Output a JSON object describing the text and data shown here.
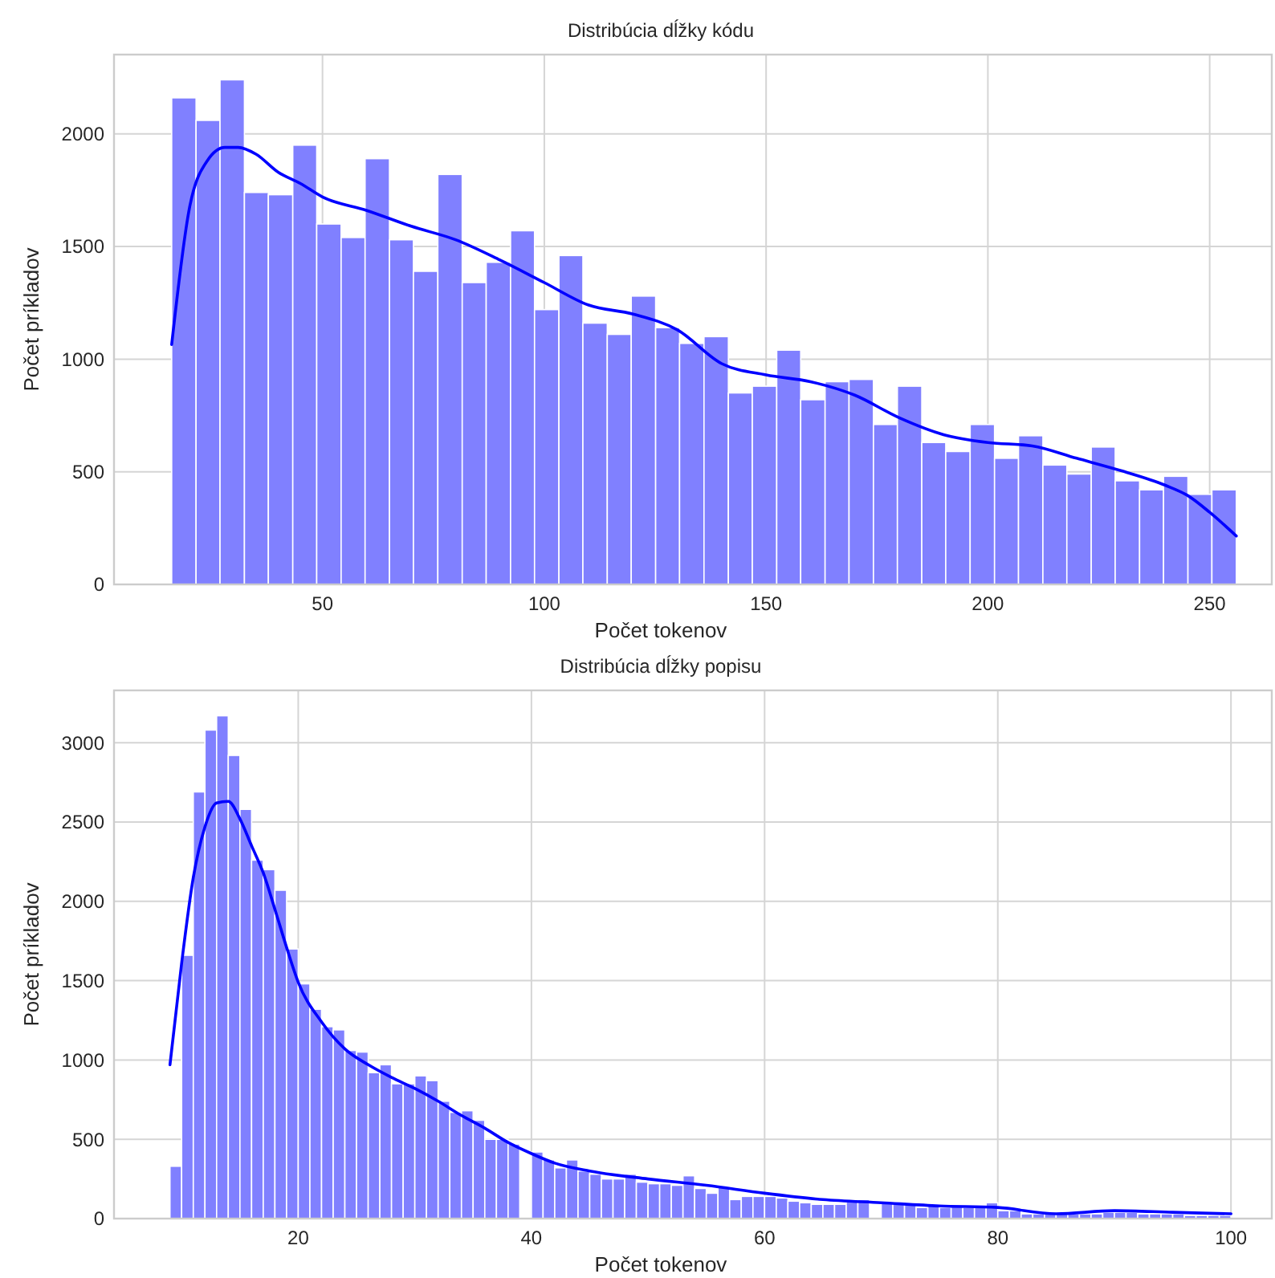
{
  "chart_data": [
    {
      "type": "histogram",
      "title": "Distribúcia dĺžky kódu",
      "xlabel": "Počet tokenov",
      "ylabel": "Počet príkladov",
      "bins": [
        16,
        21.5,
        26.9,
        32.4,
        37.8,
        43.3,
        48.7,
        54.2,
        59.6,
        65.1,
        70.5,
        76,
        81.5,
        86.9,
        92.4,
        97.8,
        103.3,
        108.7,
        114.2,
        119.6,
        125.1,
        130.5,
        136,
        141.5,
        146.9,
        152.4,
        157.8,
        163.3,
        168.7,
        174.2,
        179.6,
        185.1,
        190.5,
        196,
        201.5,
        206.9,
        212.4,
        217.8,
        223.3,
        228.7,
        234.2,
        239.6,
        245.1,
        250.5,
        256
      ],
      "values": [
        2160,
        2060,
        2240,
        1740,
        1730,
        1950,
        1600,
        1540,
        1890,
        1530,
        1390,
        1820,
        1340,
        1430,
        1570,
        1220,
        1460,
        1160,
        1110,
        1280,
        1140,
        1070,
        1100,
        850,
        880,
        1040,
        820,
        900,
        910,
        710,
        880,
        630,
        590,
        710,
        560,
        660,
        530,
        490,
        610,
        460,
        420,
        480,
        400,
        420
      ],
      "color": "#8080ff",
      "series": [
        {
          "type": "line",
          "color": "#0000ff",
          "x": [
            16,
            20,
            24,
            28,
            31,
            35,
            40,
            45,
            50,
            60,
            70,
            80,
            90,
            100,
            110,
            120,
            130,
            140,
            150,
            160,
            170,
            180,
            190,
            200,
            210,
            220,
            230,
            240,
            245,
            250,
            256
          ],
          "values": [
            1065,
            1670,
            1880,
            1940,
            1940,
            1910,
            1830,
            1780,
            1720,
            1660,
            1590,
            1530,
            1440,
            1340,
            1240,
            1200,
            1130,
            980,
            930,
            900,
            840,
            740,
            665,
            630,
            615,
            560,
            505,
            440,
            395,
            320,
            215
          ]
        }
      ],
      "xlim": [
        3,
        264
      ],
      "ylim": [
        0,
        2352
      ],
      "xticks": [
        50,
        100,
        150,
        200,
        250
      ],
      "yticks": [
        0,
        500,
        1000,
        1500,
        2000
      ],
      "grid": true
    },
    {
      "type": "histogram",
      "title": "Distribúcia dĺžky popisu",
      "xlabel": "Počet tokenov",
      "ylabel": "Počet príkladov",
      "bins": [
        9,
        10,
        11,
        12,
        13,
        14,
        15,
        16,
        17,
        18,
        19,
        20,
        21,
        22,
        23,
        24,
        25,
        26,
        27,
        28,
        29,
        30,
        31,
        32,
        33,
        34,
        35,
        36,
        37,
        38,
        39,
        40,
        41,
        42,
        43,
        44,
        45,
        46,
        47,
        48,
        49,
        50,
        51,
        52,
        53,
        54,
        55,
        56,
        57,
        58,
        59,
        60,
        61,
        62,
        63,
        64,
        65,
        66,
        67,
        68,
        69,
        70,
        71,
        72,
        73,
        74,
        75,
        76,
        77,
        78,
        79,
        80,
        81,
        82,
        83,
        84,
        85,
        86,
        87,
        88,
        89,
        90,
        91,
        92,
        93,
        94,
        95,
        96,
        97,
        98,
        99,
        100
      ],
      "values": [
        330,
        1660,
        2690,
        3080,
        3170,
        2920,
        2580,
        2260,
        2200,
        2070,
        1700,
        1480,
        1320,
        1210,
        1190,
        1060,
        1050,
        920,
        970,
        850,
        850,
        900,
        870,
        740,
        670,
        680,
        620,
        500,
        500,
        470,
        0,
        420,
        370,
        320,
        370,
        300,
        280,
        250,
        250,
        280,
        230,
        220,
        220,
        210,
        270,
        190,
        160,
        200,
        120,
        140,
        140,
        140,
        130,
        110,
        100,
        90,
        90,
        90,
        120,
        120,
        0,
        100,
        90,
        90,
        70,
        80,
        70,
        80,
        70,
        70,
        100,
        50,
        50,
        30,
        30,
        30,
        30,
        30,
        30,
        30,
        40,
        40,
        40,
        30,
        30,
        30,
        30,
        20,
        20,
        20,
        20
      ],
      "color": "#8080ff",
      "series": [
        {
          "type": "line",
          "color": "#0000ff",
          "x": [
            9,
            10,
            11,
            12,
            13,
            14,
            15,
            16,
            17,
            18,
            19,
            20,
            22,
            24,
            26,
            28,
            30,
            32,
            34,
            36,
            38,
            40,
            42,
            45,
            50,
            55,
            60,
            65,
            70,
            75,
            80,
            85,
            90,
            95,
            100
          ],
          "values": [
            970,
            1610,
            2150,
            2470,
            2620,
            2630,
            2520,
            2350,
            2180,
            1950,
            1710,
            1490,
            1240,
            1070,
            970,
            890,
            820,
            740,
            650,
            570,
            480,
            410,
            350,
            300,
            250,
            210,
            160,
            120,
            100,
            80,
            70,
            30,
            50,
            40,
            30
          ]
        }
      ],
      "xlim": [
        4.2,
        103.5
      ],
      "ylim": [
        0,
        3330
      ],
      "xticks": [
        20,
        40,
        60,
        80,
        100
      ],
      "yticks": [
        0,
        500,
        1000,
        1500,
        2000,
        2500,
        3000
      ],
      "grid": true
    }
  ]
}
